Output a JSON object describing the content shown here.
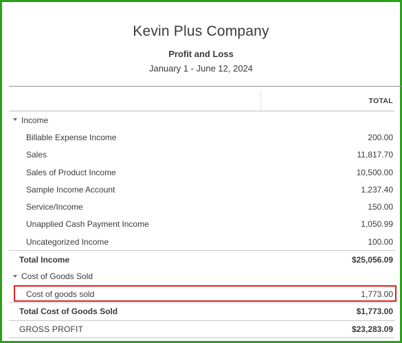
{
  "report": {
    "company": "Kevin Plus Company",
    "title": "Profit and Loss",
    "date_range": "January 1 - June 12, 2024",
    "column_header": "TOTAL"
  },
  "income": {
    "label": "Income",
    "items": [
      {
        "label": "Billable Expense Income",
        "amount": "200.00"
      },
      {
        "label": "Sales",
        "amount": "11,817.70"
      },
      {
        "label": "Sales of Product Income",
        "amount": "10,500.00"
      },
      {
        "label": "Sample Income Account",
        "amount": "1,237.40"
      },
      {
        "label": "Service/Income",
        "amount": "150.00"
      },
      {
        "label": "Unapplied Cash Payment Income",
        "amount": "1,050.99"
      },
      {
        "label": "Uncategorized Income",
        "amount": "100.00"
      }
    ],
    "total_label": "Total Income",
    "total_amount": "$25,056.09"
  },
  "cogs": {
    "label": "Cost of Goods Sold",
    "items": [
      {
        "label": "Cost of goods sold",
        "amount": "1,773.00"
      }
    ],
    "total_label": "Total Cost of Goods Sold",
    "total_amount": "$1,773.00"
  },
  "gross_profit": {
    "label": "GROSS PROFIT",
    "amount": "$23,283.09"
  },
  "colors": {
    "frame_border": "#2ca01c",
    "highlight_border": "#e0201f"
  }
}
